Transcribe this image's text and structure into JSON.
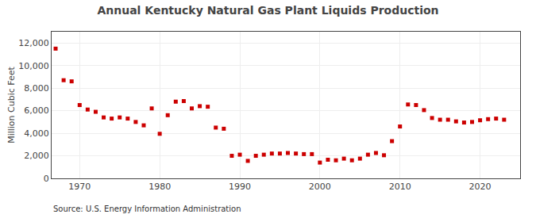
{
  "chart_data": {
    "type": "scatter",
    "title": "Annual Kentucky Natural Gas Plant Liquids Production",
    "y_label": "Million Cubic Feet",
    "annotations": [
      "Source: U.S. Energy Information Administration"
    ],
    "x": [
      1967,
      1968,
      1969,
      1970,
      1971,
      1972,
      1973,
      1974,
      1975,
      1976,
      1977,
      1978,
      1979,
      1980,
      1981,
      1982,
      1983,
      1984,
      1985,
      1986,
      1987,
      1988,
      1989,
      1990,
      1991,
      1992,
      1993,
      1994,
      1995,
      1996,
      1997,
      1998,
      1999,
      2000,
      2001,
      2002,
      2003,
      2004,
      2005,
      2006,
      2007,
      2008,
      2009,
      2010,
      2011,
      2012,
      2013,
      2014,
      2015,
      2016,
      2017,
      2018,
      2019,
      2020,
      2021,
      2022,
      2023
    ],
    "values": [
      11500,
      8700,
      8600,
      6500,
      6100,
      5900,
      5400,
      5300,
      5400,
      5300,
      5000,
      4700,
      6200,
      3950,
      5600,
      6800,
      6850,
      6200,
      6400,
      6350,
      4500,
      4400,
      2000,
      2100,
      1550,
      2000,
      2100,
      2200,
      2200,
      2250,
      2200,
      2150,
      2150,
      1400,
      1650,
      1600,
      1750,
      1600,
      1750,
      2100,
      2250,
      2050,
      3300,
      4600,
      6550,
      6500,
      6050,
      5350,
      5200,
      5200,
      5050,
      4950,
      5000,
      5150,
      5250,
      5300,
      5200
    ],
    "color": "#cc0000",
    "marker": "square",
    "xlim": [
      1966.5,
      2025
    ],
    "xticks": [
      1970,
      1980,
      1990,
      2000,
      2010,
      2020
    ],
    "ylim": [
      0,
      13000
    ],
    "yticks": [
      0,
      {
        "value": 2000,
        "label": "2,000"
      },
      {
        "value": 4000,
        "label": "4,000"
      },
      {
        "value": 6000,
        "label": "6,000"
      },
      {
        "value": 8000,
        "label": "8,000"
      },
      {
        "value": 10000,
        "label": "10,000"
      },
      {
        "value": 12000,
        "label": "12,000"
      }
    ],
    "grid": true
  }
}
